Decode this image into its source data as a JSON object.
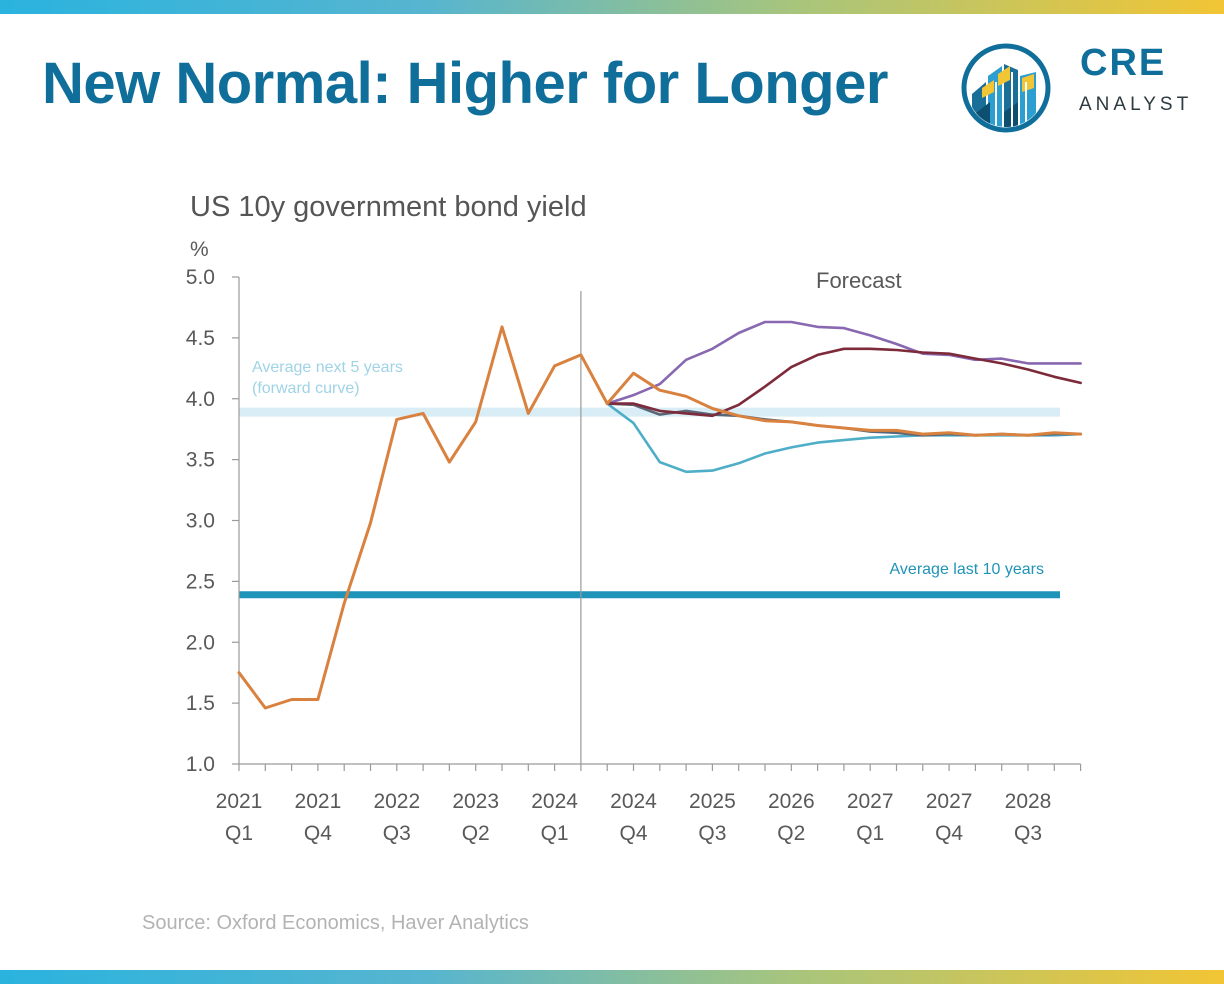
{
  "page": {
    "title": "New Normal: Higher for Longer",
    "logo": {
      "word1": "CRE",
      "word2": "ANALYST",
      "icon": "building-chart-logo-icon"
    },
    "source": "Source: Oxford Economics, Haver Analytics",
    "colors": {
      "brand_blue": "#0f6e9a",
      "gradient_start": "#2ab3df",
      "gradient_end": "#f2c534"
    }
  },
  "chart_data": {
    "type": "line",
    "title": "US 10y government bond yield",
    "ylabel": "%",
    "ylim": [
      1.0,
      5.0
    ],
    "yticks": [
      "5.0",
      "4.5",
      "4.0",
      "3.5",
      "3.0",
      "2.5",
      "2.0",
      "1.5",
      "1.0"
    ],
    "x": [
      "2021 Q1",
      "2021 Q2",
      "2021 Q3",
      "2021 Q4",
      "2022 Q1",
      "2022 Q2",
      "2022 Q3",
      "2022 Q4",
      "2023 Q1",
      "2023 Q2",
      "2023 Q3",
      "2023 Q4",
      "2024 Q1",
      "2024 Q2",
      "2024 Q3",
      "2024 Q4",
      "2025 Q1",
      "2025 Q2",
      "2025 Q3",
      "2025 Q4",
      "2026 Q1",
      "2026 Q2",
      "2026 Q3",
      "2026 Q4",
      "2027 Q1",
      "2027 Q2",
      "2027 Q3",
      "2027 Q4",
      "2028 Q1",
      "2028 Q2",
      "2028 Q3",
      "2028 Q4",
      "2029 Q1"
    ],
    "xtick_labels": [
      {
        "year": "2021",
        "quarter": "Q1"
      },
      {
        "year": "2021",
        "quarter": "Q4"
      },
      {
        "year": "2022",
        "quarter": "Q3"
      },
      {
        "year": "2023",
        "quarter": "Q2"
      },
      {
        "year": "2024",
        "quarter": "Q1"
      },
      {
        "year": "2024",
        "quarter": "Q4"
      },
      {
        "year": "2025",
        "quarter": "Q3"
      },
      {
        "year": "2026",
        "quarter": "Q2"
      },
      {
        "year": "2027",
        "quarter": "Q1"
      },
      {
        "year": "2027",
        "quarter": "Q4"
      },
      {
        "year": "2028",
        "quarter": "Q3"
      }
    ],
    "forecast_label": "Forecast",
    "forecast_start": "2024 Q2",
    "series": [
      {
        "color": "#d9813f",
        "values": [
          1.75,
          1.46,
          1.53,
          1.53,
          2.32,
          2.98,
          3.83,
          3.88,
          3.48,
          3.81,
          4.59,
          3.88,
          4.27,
          4.36,
          3.96,
          4.21,
          4.07,
          4.02,
          3.92,
          3.86,
          3.82,
          3.81,
          3.78,
          3.76,
          3.74,
          3.74,
          3.71,
          3.72,
          3.7,
          3.71,
          3.7,
          3.72,
          3.71
        ]
      },
      {
        "color": "#4eaec8",
        "values": [
          null,
          null,
          null,
          null,
          null,
          null,
          null,
          null,
          null,
          null,
          null,
          null,
          null,
          null,
          3.96,
          3.8,
          3.48,
          3.4,
          3.41,
          3.47,
          3.55,
          3.6,
          3.64,
          3.66,
          3.68,
          3.69,
          3.7,
          3.7,
          3.7,
          3.7,
          3.7,
          3.7,
          3.71
        ]
      },
      {
        "color": "#8868b0",
        "values": [
          null,
          null,
          null,
          null,
          null,
          null,
          null,
          null,
          null,
          null,
          null,
          null,
          null,
          null,
          3.96,
          4.03,
          4.12,
          4.32,
          4.41,
          4.54,
          4.63,
          4.63,
          4.59,
          4.58,
          4.52,
          4.45,
          4.37,
          4.36,
          4.32,
          4.33,
          4.29,
          4.29,
          4.29
        ]
      },
      {
        "color": "#7d2a3a",
        "values": [
          null,
          null,
          null,
          null,
          null,
          null,
          null,
          null,
          null,
          null,
          null,
          null,
          null,
          null,
          3.96,
          3.96,
          3.9,
          3.88,
          3.86,
          3.95,
          4.1,
          4.26,
          4.36,
          4.41,
          4.41,
          4.4,
          4.38,
          4.37,
          4.33,
          4.29,
          4.24,
          4.18,
          4.13
        ]
      },
      {
        "color": "#5a6678",
        "values": [
          null,
          null,
          null,
          null,
          null,
          null,
          null,
          null,
          null,
          null,
          null,
          null,
          null,
          null,
          3.96,
          3.95,
          3.87,
          3.9,
          3.87,
          3.86,
          3.83,
          3.81,
          3.78,
          3.76,
          3.73,
          3.72,
          3.7,
          3.71,
          3.7,
          3.71,
          3.7,
          3.71,
          3.71
        ]
      }
    ],
    "reference_lines": [
      {
        "label": "Average next 5 years (forward curve)",
        "value": 3.89,
        "color": "#d8edf5"
      },
      {
        "label": "Average last 10 years",
        "value": 2.39,
        "color": "#1f93b8"
      }
    ],
    "annotations": {
      "next5_line1": "Average next 5 years",
      "next5_line2": "(forward curve)",
      "last10": "Average last 10 years"
    },
    "grid": false,
    "legend": "none"
  }
}
